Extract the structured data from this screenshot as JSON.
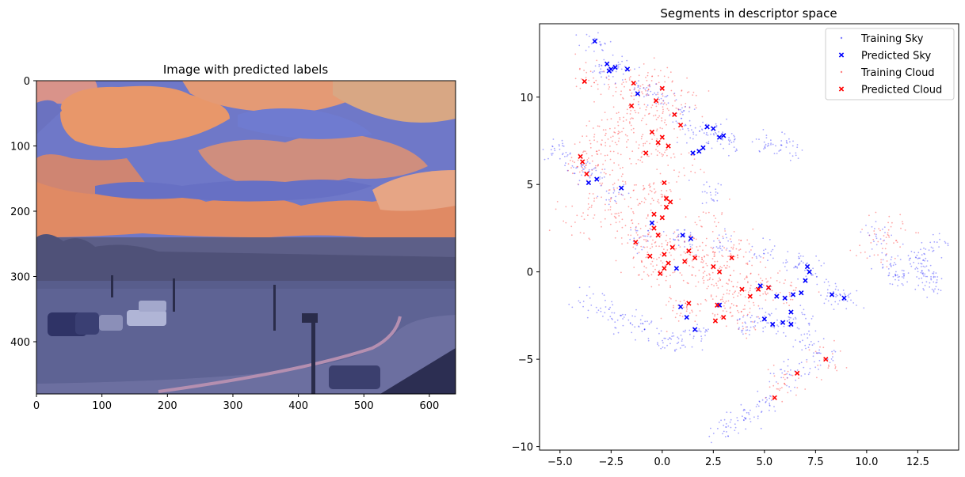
{
  "chart_data": [
    {
      "type": "image",
      "title": "Image with predicted labels",
      "xlim": [
        0,
        640
      ],
      "ylim": [
        480,
        0
      ],
      "xticks": [
        0,
        100,
        200,
        300,
        400,
        500,
        600
      ],
      "yticks": [
        0,
        100,
        200,
        300,
        400
      ],
      "colors": {
        "sky": "#6f78c8",
        "cloud": "#e3966e",
        "ground": "#565b8a"
      }
    },
    {
      "type": "scatter",
      "title": "Segments in descriptor space",
      "xlim": [
        -6,
        14.5
      ],
      "ylim": [
        -10.2,
        14.2
      ],
      "xticks": [
        -5.0,
        -2.5,
        0.0,
        2.5,
        5.0,
        7.5,
        10.0,
        12.5
      ],
      "xtick_labels": [
        "−5.0",
        "−2.5",
        "0.0",
        "2.5",
        "5.0",
        "7.5",
        "10.0",
        "12.5"
      ],
      "yticks": [
        -10,
        -5,
        0,
        5,
        10
      ],
      "ytick_labels": [
        "−10",
        "−5",
        "0",
        "5",
        "10"
      ],
      "legend_position": "top-right",
      "legend": [
        {
          "name": "Training Sky",
          "color": "#0000ff",
          "marker": "dot"
        },
        {
          "name": "Predicted Sky",
          "color": "#0000ff",
          "marker": "x"
        },
        {
          "name": "Training Cloud",
          "color": "#ff0000",
          "marker": "dot"
        },
        {
          "name": "Predicted Cloud",
          "color": "#ff0000",
          "marker": "x"
        }
      ],
      "series": [
        {
          "name": "Predicted Sky",
          "color": "#0000ff",
          "marker": "x",
          "x": [
            -3.3,
            -2.7,
            -2.5,
            -2.3,
            -2.6,
            -1.7,
            -1.2,
            1.8,
            2.0,
            2.2,
            2.5,
            2.8,
            3.0,
            1.5,
            -0.5,
            1.0,
            1.4,
            0.7,
            4.8,
            5.2,
            5.6,
            6.0,
            6.4,
            6.8,
            7.1,
            7.2,
            6.3,
            8.3,
            8.9,
            5.0,
            5.4,
            5.9,
            6.3,
            1.2,
            2.8,
            1.6,
            0.9,
            7.0,
            -3.6,
            -3.2,
            -2.0
          ],
          "y": [
            13.2,
            11.9,
            11.6,
            11.7,
            11.5,
            11.6,
            10.2,
            6.9,
            7.1,
            8.3,
            8.2,
            7.7,
            7.8,
            6.8,
            2.8,
            2.1,
            1.9,
            0.2,
            -0.8,
            -0.9,
            -1.4,
            -1.5,
            -1.3,
            -1.2,
            0.3,
            0.0,
            -2.3,
            -1.3,
            -1.5,
            -2.7,
            -3.0,
            -2.9,
            -3.0,
            -2.6,
            -1.9,
            -3.3,
            -2.0,
            -0.5,
            5.1,
            5.3,
            4.8
          ]
        },
        {
          "name": "Predicted Cloud",
          "color": "#ff0000",
          "marker": "x",
          "x": [
            -3.8,
            -1.4,
            -1.5,
            0.0,
            -0.3,
            0.6,
            0.9,
            -0.5,
            -0.2,
            0.0,
            0.3,
            -0.8,
            0.1,
            0.2,
            0.4,
            0.2,
            -0.4,
            0.0,
            -0.4,
            -0.2,
            0.5,
            0.1,
            -1.3,
            -0.6,
            0.3,
            1.1,
            1.3,
            1.6,
            2.5,
            2.8,
            3.4,
            3.9,
            4.3,
            4.7,
            5.2,
            3.0,
            2.6,
            -4.0,
            -3.9,
            -3.7,
            -0.1,
            0.1,
            1.3,
            2.7,
            5.5,
            6.6,
            8.0
          ],
          "y": [
            10.9,
            10.8,
            9.5,
            10.5,
            9.8,
            9.0,
            8.4,
            8.0,
            7.4,
            7.7,
            7.2,
            6.8,
            5.1,
            4.2,
            4.0,
            3.7,
            3.3,
            3.1,
            2.5,
            2.1,
            1.4,
            1.0,
            1.7,
            0.9,
            0.5,
            0.6,
            1.2,
            0.8,
            0.3,
            0.0,
            0.8,
            -1.0,
            -1.4,
            -1.0,
            -0.9,
            -2.6,
            -2.8,
            6.6,
            6.3,
            5.6,
            -0.1,
            0.2,
            -1.8,
            -1.9,
            -7.2,
            -5.8,
            -5.0
          ]
        }
      ]
    }
  ]
}
